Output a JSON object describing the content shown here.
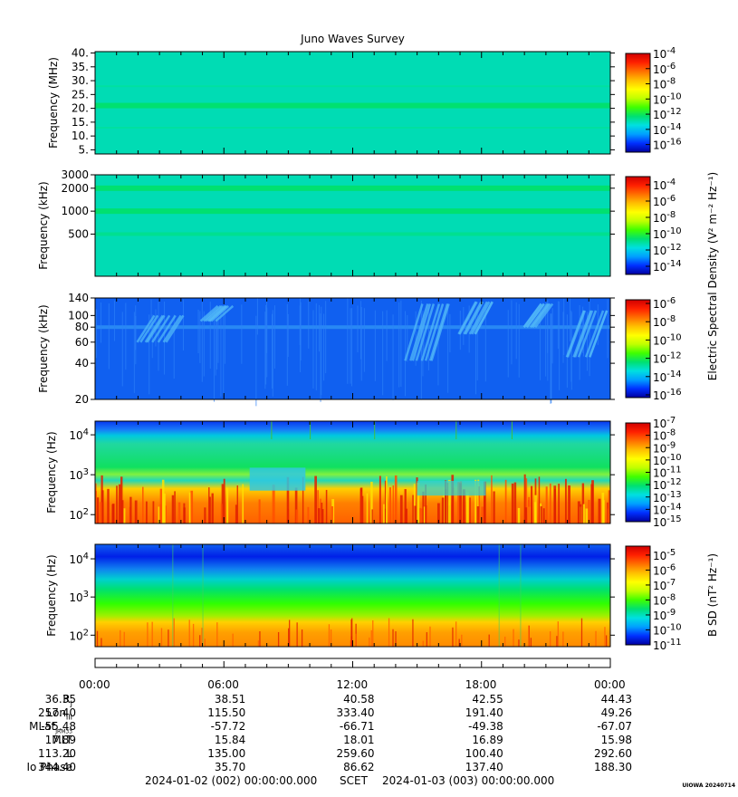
{
  "title": "Juno Waves Survey",
  "colors": {
    "background": "#00dcb4",
    "band": "#00e070",
    "low_field": "#1060f0",
    "warm": "#ff9a00",
    "hot": "#e02000"
  },
  "colorscale": [
    "#0000a0",
    "#0030ff",
    "#00a0ff",
    "#00e0e0",
    "#00e070",
    "#40ff00",
    "#c0ff00",
    "#ffff00",
    "#ffc000",
    "#ff7000",
    "#ff2000",
    "#d00000"
  ],
  "side_labels": {
    "electric": "Electric Spectral Density (V² m⁻² Hz⁻¹)",
    "magnetic": "B SD (nT² Hz⁻¹)"
  },
  "chart_data": [
    {
      "type": "heatmap",
      "title": "Juno Waves Survey",
      "ylabel": "Frequency (MHz)",
      "ylim": [
        3.5,
        40.5
      ],
      "yscale": "linear",
      "ytick_labels": [
        "40.",
        "35.",
        "30.",
        "25.",
        "20.",
        "15.",
        "10.",
        "5."
      ],
      "ytick_values": [
        40,
        35,
        30,
        25,
        20,
        15,
        10,
        5
      ],
      "colorbar_ticks": [
        {
          "base": "10",
          "exp": "-4"
        },
        {
          "base": "10",
          "exp": "-6"
        },
        {
          "base": "10",
          "exp": "-8"
        },
        {
          "base": "10",
          "exp": "-10"
        },
        {
          "base": "10",
          "exp": "-12"
        },
        {
          "base": "10",
          "exp": "-14"
        },
        {
          "base": "10",
          "exp": "-16"
        }
      ],
      "colorbar_range": [
        -17,
        -4
      ],
      "features": "uniform background with a brighter emission band near 21 MHz"
    },
    {
      "type": "heatmap",
      "ylabel": "Frequency (kHz)",
      "ylim": [
        140,
        3000
      ],
      "yscale": "log",
      "ytick_labels": [
        "3000",
        "2000",
        "1000",
        "500"
      ],
      "ytick_values": [
        3000,
        2000,
        1000,
        500
      ],
      "colorbar_ticks": [
        {
          "base": "10",
          "exp": "-4"
        },
        {
          "base": "10",
          "exp": "-6"
        },
        {
          "base": "10",
          "exp": "-8"
        },
        {
          "base": "10",
          "exp": "-10"
        },
        {
          "base": "10",
          "exp": "-12"
        },
        {
          "base": "10",
          "exp": "-14"
        }
      ],
      "colorbar_range": [
        -15,
        -3
      ],
      "features": "uniform background with bands near 2000 kHz, 1000 kHz and 500 kHz"
    },
    {
      "type": "heatmap",
      "ylabel": "Frequency (kHz)",
      "ylim": [
        20,
        140
      ],
      "yscale": "log",
      "ytick_labels": [
        "140",
        "100",
        "80",
        "60",
        "40",
        "20"
      ],
      "ytick_values": [
        140,
        100,
        80,
        60,
        40,
        20
      ],
      "colorbar_ticks": [
        {
          "base": "10",
          "exp": "-6"
        },
        {
          "base": "10",
          "exp": "-8"
        },
        {
          "base": "10",
          "exp": "-10"
        },
        {
          "base": "10",
          "exp": "-12"
        },
        {
          "base": "10",
          "exp": "-14"
        },
        {
          "base": "10",
          "exp": "-16"
        }
      ],
      "colorbar_range": [
        -16.3,
        -5.6
      ],
      "features": "low-level background with drifting emissions near 03:00, 06:00, 15:00-17:00 and 21:00-24:00"
    },
    {
      "type": "heatmap",
      "ylabel": "Frequency (Hz)",
      "ylim": [
        60,
        22000
      ],
      "yscale": "log",
      "ytick_labels": [
        {
          "base": "10",
          "exp": "4"
        },
        {
          "base": "10",
          "exp": "3"
        },
        {
          "base": "10",
          "exp": "2"
        }
      ],
      "ytick_values": [
        10000,
        1000,
        100
      ],
      "colorbar_ticks": [
        {
          "base": "10",
          "exp": "-7"
        },
        {
          "base": "10",
          "exp": "-8"
        },
        {
          "base": "10",
          "exp": "-9"
        },
        {
          "base": "10",
          "exp": "-10"
        },
        {
          "base": "10",
          "exp": "-11"
        },
        {
          "base": "10",
          "exp": "-12"
        },
        {
          "base": "10",
          "exp": "-13"
        },
        {
          "base": "10",
          "exp": "-14"
        },
        {
          "base": "10",
          "exp": "-15"
        }
      ],
      "colorbar_range": [
        -15,
        -7
      ],
      "features": "intense low-frequency emission below about 1 kHz, green band up to about 5 kHz"
    },
    {
      "type": "heatmap",
      "ylabel": "Frequency (Hz)",
      "ylim": [
        50,
        24000
      ],
      "yscale": "log",
      "ytick_labels": [
        {
          "base": "10",
          "exp": "4"
        },
        {
          "base": "10",
          "exp": "3"
        },
        {
          "base": "10",
          "exp": "2"
        }
      ],
      "ytick_values": [
        10000,
        1000,
        100
      ],
      "colorbar_ticks": [
        {
          "base": "10",
          "exp": "-5"
        },
        {
          "base": "10",
          "exp": "-6"
        },
        {
          "base": "10",
          "exp": "-7"
        },
        {
          "base": "10",
          "exp": "-8"
        },
        {
          "base": "10",
          "exp": "-9"
        },
        {
          "base": "10",
          "exp": "-10"
        },
        {
          "base": "10",
          "exp": "-11"
        }
      ],
      "colorbar_range": [
        -11,
        -4.4
      ],
      "features": "blue above about 5 kHz, green in between, orange below about 300 Hz"
    }
  ],
  "ephemeris": {
    "times": [
      "00:00",
      "06:00",
      "12:00",
      "18:00",
      "00:00"
    ],
    "rows": [
      {
        "label": "R",
        "sub": "J",
        "values": [
          "36.35",
          "38.51",
          "40.58",
          "42.55",
          "44.43"
        ]
      },
      {
        "label": "Lon",
        "sub": "III",
        "values": [
          "257.40",
          "115.50",
          "333.40",
          "191.40",
          "49.26"
        ]
      },
      {
        "label": "MLat",
        "sub": "JRM33",
        "values": [
          "-55.48",
          "-57.72",
          "-66.71",
          "-49.38",
          "-67.07"
        ]
      },
      {
        "label": "MLT",
        "sub": "",
        "values": [
          "17.89",
          "15.84",
          "18.01",
          "16.89",
          "15.98"
        ]
      },
      {
        "label": "L",
        "sub": "",
        "values": [
          "113.20",
          "135.00",
          "259.60",
          "100.40",
          "292.60"
        ]
      },
      {
        "label": "Io Phase",
        "sub": "",
        "values": [
          "344.40",
          "35.70",
          "86.62",
          "137.40",
          "188.30"
        ]
      }
    ]
  },
  "footer": {
    "start": "2024-01-02 (002) 00:00:00.000",
    "scet": "SCET",
    "end": "2024-01-03 (003) 00:00:00.000"
  },
  "stamp": "UIOWA 20240714"
}
